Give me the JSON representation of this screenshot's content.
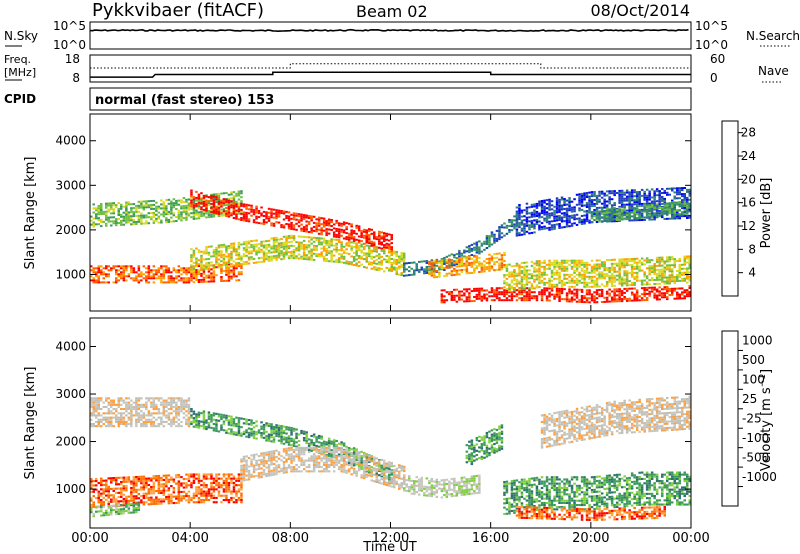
{
  "header": {
    "station": "Pykkvibaer (fitACF)",
    "beam": "Beam 02",
    "date": "08/Oct/2014"
  },
  "noise_panel": {
    "left_label": "N.Sky",
    "left_ticks": [
      "10^5",
      "10^0"
    ],
    "right_label": "N.Search",
    "right_ticks": [
      "10^5",
      "10^0"
    ]
  },
  "freq_panel": {
    "left_label_1": "Freq.",
    "left_label_2": "[MHz]",
    "left_ticks": [
      "18",
      "8"
    ],
    "right_label": "Nave",
    "right_ticks": [
      "60",
      "0"
    ]
  },
  "cpid_panel": {
    "label": "CPID",
    "text": "normal (fast stereo) 153"
  },
  "x_axis": {
    "label": "Time UT",
    "ticks": [
      "00:00",
      "04:00",
      "08:00",
      "12:00",
      "16:00",
      "20:00",
      "00:00"
    ]
  },
  "colors": {
    "power": [
      "#0000ff",
      "#1f3fbf",
      "#2e7d7d",
      "#3a9a5a",
      "#6fbf3f",
      "#d9d91f",
      "#ff9f00",
      "#ff5f00",
      "#ff0000"
    ],
    "velocity": [
      "#ff0000",
      "#ff6f00",
      "#ffa040",
      "#c0c0b8",
      "#c8c8c0",
      "#7fcf3f",
      "#3a9a5a",
      "#2e6f6f",
      "#2040c0"
    ]
  },
  "chart_data": [
    {
      "type": "line",
      "title": "",
      "xlabel": "",
      "ylabel": "N.Sky",
      "x_range_hours": [
        0,
        24
      ],
      "scale": "log",
      "series": [
        {
          "x": [
            0,
            1,
            4,
            8,
            10.5,
            12,
            16,
            20,
            24
          ],
          "values": [
            3000,
            3500,
            3200,
            3000,
            3500,
            3300,
            3000,
            3200,
            3500
          ]
        }
      ]
    },
    {
      "type": "line",
      "title": "",
      "xlabel": "",
      "ylabel": "Freq. [MHz]",
      "x_range_hours": [
        0,
        24
      ],
      "ylim": [
        8,
        18
      ],
      "series": [
        {
          "x": [
            0,
            2.5,
            2.6,
            7.3,
            7.3,
            16.0,
            16.0,
            24
          ],
          "values": [
            9.5,
            9.5,
            10.5,
            10.5,
            11.4,
            11.4,
            10.5,
            10.5
          ]
        },
        {
          "x": [
            0,
            8,
            8,
            18,
            18,
            24
          ],
          "values": [
            30,
            30,
            40,
            40,
            30,
            30
          ]
        }
      ]
    },
    {
      "type": "heatmap",
      "title": "",
      "xlabel": "",
      "ylabel": "Slant Range [km]",
      "x_range_hours": [
        0,
        24
      ],
      "ylim": [
        180,
        4600
      ],
      "yticks": [
        1000,
        2000,
        3000,
        4000
      ],
      "colorbar": {
        "label": "Power [dB]",
        "ticks": [
          4,
          8,
          12,
          16,
          20,
          24,
          28
        ],
        "range": [
          0,
          30
        ]
      },
      "bands": [
        {
          "x": [
            0,
            2,
            4,
            6
          ],
          "center": [
            1000,
            1000,
            1000,
            1050
          ],
          "width": 400,
          "level": 7
        },
        {
          "x": [
            0,
            3,
            6
          ],
          "center": [
            2300,
            2400,
            2600
          ],
          "width": 500,
          "level": 4
        },
        {
          "x": [
            4,
            6,
            8,
            10,
            12
          ],
          "center": [
            2700,
            2400,
            2200,
            2000,
            1700
          ],
          "width": 400,
          "level": 8
        },
        {
          "x": [
            4,
            8,
            10,
            12.5
          ],
          "center": [
            1300,
            1600,
            1500,
            1200
          ],
          "width": 500,
          "level": 5
        },
        {
          "x": [
            12.5,
            14,
            15.5,
            17
          ],
          "center": [
            1100,
            1200,
            1600,
            2200
          ],
          "width": 300,
          "level": 2
        },
        {
          "x": [
            13.5,
            15,
            16.5
          ],
          "center": [
            1100,
            1200,
            1300
          ],
          "width": 400,
          "level": 6
        },
        {
          "x": [
            14,
            16,
            18,
            20,
            22,
            24
          ],
          "center": [
            500,
            550,
            550,
            500,
            550,
            600
          ],
          "width": 300,
          "level": 8
        },
        {
          "x": [
            16.5,
            18,
            20,
            22,
            24
          ],
          "center": [
            900,
            1000,
            1000,
            1050,
            1100
          ],
          "width": 600,
          "level": 5
        },
        {
          "x": [
            17,
            20,
            24
          ],
          "center": [
            2200,
            2500,
            2600
          ],
          "width": 700,
          "level": 1
        },
        {
          "x": [
            20,
            22,
            24
          ],
          "center": [
            2300,
            2400,
            2500
          ],
          "width": 300,
          "level": 3
        }
      ]
    },
    {
      "type": "heatmap",
      "title": "",
      "xlabel": "Time UT",
      "ylabel": "Slant Range [km]",
      "x_range_hours": [
        0,
        24
      ],
      "ylim": [
        180,
        4600
      ],
      "yticks": [
        1000,
        2000,
        3000,
        4000
      ],
      "colorbar": {
        "label": "Velocity [m s^-1]",
        "ticks": [
          1000,
          500,
          100,
          25,
          -25,
          -100,
          -500,
          -1000
        ]
      },
      "bands": [
        {
          "x": [
            0,
            2,
            4,
            6
          ],
          "center": [
            900,
            950,
            1000,
            1000
          ],
          "width": 600,
          "level": 1
        },
        {
          "x": [
            0,
            2
          ],
          "center": [
            500,
            600
          ],
          "width": 200,
          "level": 5
        },
        {
          "x": [
            0,
            4
          ],
          "center": [
            2600,
            2600
          ],
          "width": 600,
          "level": 3
        },
        {
          "x": [
            4,
            6,
            8,
            10,
            12
          ],
          "center": [
            2500,
            2300,
            2100,
            1800,
            1300
          ],
          "width": 400,
          "level": 6
        },
        {
          "x": [
            6,
            8,
            10,
            12.5
          ],
          "center": [
            1400,
            1600,
            1600,
            1200
          ],
          "width": 500,
          "level": 3
        },
        {
          "x": [
            12.5,
            14,
            15.5
          ],
          "center": [
            1100,
            1000,
            1100
          ],
          "width": 400,
          "level": 4
        },
        {
          "x": [
            15,
            16.5
          ],
          "center": [
            1700,
            2100
          ],
          "width": 500,
          "level": 6
        },
        {
          "x": [
            16.5,
            18,
            20,
            22,
            24
          ],
          "center": [
            800,
            900,
            900,
            1000,
            1000
          ],
          "width": 700,
          "level": 6
        },
        {
          "x": [
            17,
            20,
            23
          ],
          "center": [
            500,
            450,
            500
          ],
          "width": 250,
          "level": 1
        },
        {
          "x": [
            18,
            21,
            24
          ],
          "center": [
            2200,
            2500,
            2600
          ],
          "width": 700,
          "level": 3
        }
      ]
    }
  ]
}
